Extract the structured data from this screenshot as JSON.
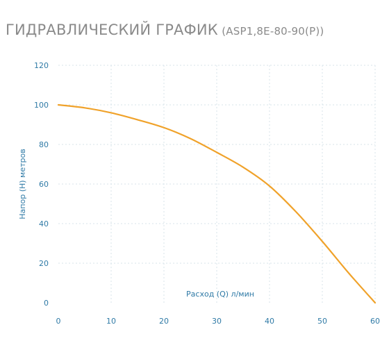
{
  "header": {
    "title": "ГИДРАВЛИЧЕСКИЙ ГРАФИК",
    "subtitle": "(ASP1,8E-80-90(P))"
  },
  "colors": {
    "curve": "#f0a22a",
    "axis_text": "#2f7aa6",
    "grid": "#d7e3ea",
    "title": "#8a8a8a"
  },
  "chart_data": {
    "type": "line",
    "title": "ГИДРАВЛИЧЕСКИЙ ГРАФИК (ASP1,8E-80-90(P))",
    "xlabel": "Расход (Q) л/мин",
    "ylabel": "Напор (Н) метров",
    "xlim": [
      0,
      60
    ],
    "ylim": [
      0,
      120
    ],
    "xticks": [
      0,
      10,
      20,
      30,
      40,
      50,
      60
    ],
    "yticks": [
      0,
      20,
      40,
      60,
      80,
      100,
      120
    ],
    "grid": true,
    "legend": "none",
    "series": [
      {
        "x": [
          0,
          5,
          10,
          15,
          20,
          25,
          30,
          35,
          40,
          45,
          50,
          55,
          60
        ],
        "y": [
          100,
          98.5,
          96,
          92.5,
          88.5,
          83,
          76,
          68.5,
          59,
          46,
          31,
          15,
          0
        ]
      }
    ]
  }
}
